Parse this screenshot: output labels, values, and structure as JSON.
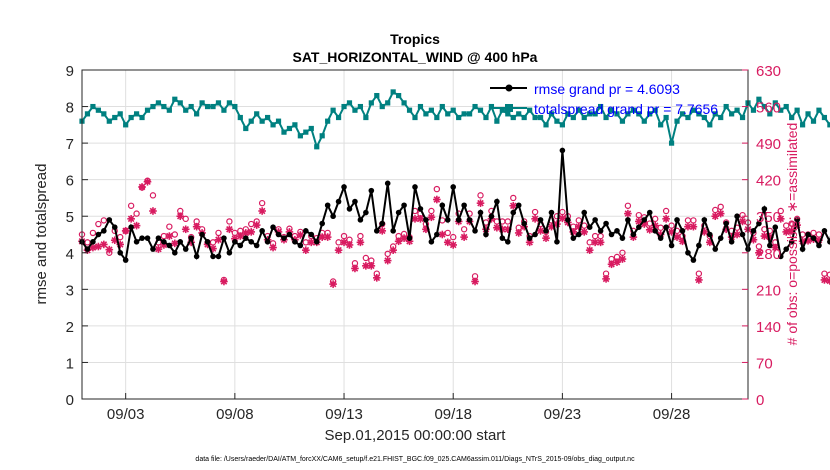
{
  "chart_data": {
    "type": "line",
    "title": "Tropics",
    "subtitle": "SAT_HORIZONTAL_WIND @ 400 hPa",
    "xlabel": "Sep.01,2015 00:00:00 start",
    "ylabel_left": "rmse and totalspread",
    "ylabel_right": "# of obs: o=possible; ∗=assimilated",
    "footnote": "data file: /Users/raeder/DAI/ATM_forcXX/CAM6_setup/f.e21.FHIST_BGC.f09_025.CAM6assim.011/Diags_NTrS_2015-09/obs_diag_output.nc",
    "x_range_days": [
      0,
      30.5
    ],
    "xticks": [
      {
        "day": 2,
        "label": "09/03"
      },
      {
        "day": 7,
        "label": "09/08"
      },
      {
        "day": 12,
        "label": "09/13"
      },
      {
        "day": 17,
        "label": "09/18"
      },
      {
        "day": 22,
        "label": "09/23"
      },
      {
        "day": 27,
        "label": "09/28"
      }
    ],
    "ylim_left": [
      0,
      9
    ],
    "yticks_left": [
      "0",
      "1",
      "2",
      "3",
      "4",
      "5",
      "6",
      "7",
      "8",
      "9"
    ],
    "ylim_right": [
      0,
      630
    ],
    "yticks_right": [
      "0",
      "70",
      "140",
      "210",
      "280",
      "350",
      "420",
      "490",
      "560",
      "630"
    ],
    "grid": true,
    "legend": {
      "position": "top-right",
      "entries": [
        {
          "label": "rmse grand pr = 4.6093",
          "color": "#000000",
          "series": "rmse"
        },
        {
          "label": "totalspread grand pr = 7.7656",
          "color": "#008080",
          "series": "totalspread"
        }
      ]
    },
    "colors": {
      "rmse": "#000000",
      "totalspread": "#008080",
      "obs": "#D81B60",
      "axis": "#262626",
      "grid": "#dfdfdf",
      "legend_text": "#0000ff"
    },
    "time_step_days": 0.25,
    "series": [
      {
        "name": "rmse",
        "axis": "left",
        "values": [
          4.3,
          4.1,
          4.3,
          4.5,
          4.6,
          4.9,
          4.7,
          4.0,
          3.8,
          4.7,
          4.3,
          4.4,
          4.4,
          4.1,
          4.4,
          4.3,
          4.2,
          4.0,
          4.3,
          4.1,
          4.4,
          3.9,
          4.5,
          4.3,
          3.9,
          3.9,
          4.4,
          4.0,
          4.3,
          4.2,
          4.4,
          4.3,
          4.2,
          4.6,
          4.3,
          4.7,
          4.5,
          4.4,
          4.5,
          4.3,
          4.2,
          4.6,
          4.5,
          4.3,
          4.8,
          5.3,
          5.0,
          5.4,
          5.8,
          5.2,
          5.4,
          4.9,
          5.1,
          5.7,
          4.6,
          4.8,
          5.9,
          4.6,
          5.1,
          5.3,
          4.4,
          5.8,
          5.2,
          4.9,
          4.3,
          4.5,
          5.3,
          4.9,
          5.8,
          4.9,
          5.3,
          4.9,
          4.6,
          5.1,
          4.5,
          5.0,
          5.4,
          4.4,
          4.3,
          5.1,
          5.3,
          4.8,
          4.4,
          4.5,
          4.9,
          4.6,
          5.1,
          4.3,
          6.8,
          4.9,
          4.4,
          4.5,
          5.1,
          4.7,
          4.9,
          4.6,
          4.8,
          4.5,
          4.6,
          4.4,
          4.9,
          4.5,
          4.7,
          4.9,
          5.1,
          4.6,
          4.4,
          4.7,
          4.2,
          4.9,
          4.6,
          4.0,
          3.8,
          4.2,
          4.9,
          4.5,
          4.1,
          4.4,
          4.8,
          4.3,
          5.0,
          4.5,
          4.1,
          4.6,
          4.8,
          5.2,
          4.2,
          4.7,
          3.9,
          4.1,
          4.3,
          4.9,
          4.1,
          4.5,
          4.4,
          4.2,
          4.6,
          4.3,
          5.1,
          4.4,
          4.6
        ]
      },
      {
        "name": "totalspread",
        "axis": "left",
        "values": [
          7.6,
          7.8,
          8.0,
          7.9,
          7.8,
          7.6,
          7.7,
          7.8,
          7.5,
          7.7,
          7.8,
          7.7,
          7.9,
          8.0,
          8.1,
          8.0,
          7.9,
          8.2,
          8.1,
          7.9,
          8.0,
          7.8,
          8.1,
          8.0,
          8.0,
          8.1,
          7.9,
          8.1,
          8.0,
          7.7,
          7.4,
          7.6,
          7.8,
          7.6,
          7.7,
          7.5,
          7.6,
          7.3,
          7.4,
          7.5,
          7.2,
          7.3,
          7.4,
          6.9,
          7.2,
          7.6,
          7.9,
          7.7,
          8.0,
          8.1,
          7.9,
          8.0,
          7.7,
          8.1,
          8.3,
          8.0,
          8.1,
          8.4,
          8.3,
          8.1,
          7.9,
          7.7,
          8.0,
          7.8,
          7.9,
          7.7,
          8.0,
          7.8,
          7.9,
          7.7,
          7.8,
          7.8,
          8.0,
          7.9,
          7.7,
          8.0,
          7.6,
          7.9,
          7.8,
          7.7,
          7.8,
          7.7,
          7.9,
          7.7,
          7.7,
          7.5,
          7.8,
          7.6,
          7.5,
          7.8,
          7.7,
          7.9,
          7.7,
          7.8,
          7.8,
          8.0,
          7.7,
          7.9,
          7.8,
          7.6,
          7.8,
          7.9,
          7.8,
          7.6,
          7.8,
          7.9,
          7.5,
          7.7,
          7.0,
          7.6,
          7.8,
          7.7,
          7.9,
          7.8,
          7.7,
          7.5,
          7.8,
          7.7,
          8.0,
          7.8,
          7.9,
          7.7,
          8.1,
          7.9,
          8.2,
          8.0,
          7.8,
          8.1,
          7.9,
          8.0,
          7.7,
          7.9,
          7.5,
          7.8,
          7.6,
          7.9,
          7.7,
          7.5,
          7.4,
          7.7,
          7.9
        ]
      },
      {
        "name": "obs_assimilated",
        "axis": "right",
        "marker": "*",
        "values": [
          302,
          285,
          290,
          292,
          296,
          286,
          304,
          296,
          322,
          345,
          332,
          406,
          416,
          360,
          287,
          295,
          312,
          298,
          350,
          325,
          300,
          330,
          318,
          296,
          288,
          305,
          225,
          325,
          307,
          312,
          318,
          320,
          333,
          360,
          305,
          290,
          320,
          305,
          320,
          305,
          314,
          285,
          300,
          300,
          310,
          310,
          220,
          285,
          300,
          295,
          250,
          300,
          255,
          255,
          232,
          322,
          265,
          285,
          302,
          308,
          302,
          345,
          345,
          325,
          348,
          382,
          315,
          300,
          295,
          340,
          310,
          340,
          225,
          375,
          325,
          345,
          328,
          325,
          325,
          370,
          318,
          330,
          300,
          345,
          322,
          308,
          330,
          335,
          346,
          338,
          320,
          330,
          320,
          285,
          300,
          300,
          230,
          258,
          262,
          268,
          355,
          310,
          340,
          335,
          324,
          332,
          315,
          345,
          320,
          310,
          302,
          330,
          330,
          228,
          320,
          300,
          350,
          355,
          325,
          310,
          315,
          340,
          325,
          305,
          280,
          312,
          310,
          290,
          345,
          320,
          322,
          333,
          302,
          303,
          306,
          304,
          228,
          226,
          228,
          324,
          335
        ]
      },
      {
        "name": "obs_possible",
        "axis": "right",
        "marker": "o",
        "values": [
          315,
          300,
          318,
          335,
          342,
          280,
          322,
          310,
          322,
          370,
          355,
          405,
          418,
          390,
          300,
          312,
          330,
          315,
          360,
          345,
          310,
          340,
          325,
          300,
          300,
          318,
          228,
          340,
          318,
          322,
          325,
          335,
          340,
          375,
          312,
          298,
          325,
          310,
          326,
          312,
          320,
          300,
          312,
          308,
          318,
          318,
          225,
          300,
          312,
          305,
          260,
          312,
          270,
          265,
          240,
          335,
          278,
          292,
          312,
          316,
          310,
          360,
          355,
          335,
          360,
          402,
          342,
          318,
          310,
          355,
          325,
          355,
          235,
          390,
          338,
          360,
          340,
          340,
          340,
          385,
          328,
          340,
          312,
          358,
          335,
          320,
          342,
          350,
          358,
          350,
          330,
          342,
          332,
          300,
          312,
          312,
          240,
          268,
          272,
          280,
          370,
          322,
          352,
          348,
          336,
          345,
          328,
          360,
          332,
          322,
          312,
          342,
          342,
          240,
          332,
          312,
          362,
          368,
          338,
          322,
          328,
          352,
          338,
          318,
          292,
          325,
          322,
          300,
          360,
          332,
          336,
          345,
          315,
          315,
          318,
          315,
          240,
          238,
          240,
          336,
          348
        ]
      }
    ]
  }
}
